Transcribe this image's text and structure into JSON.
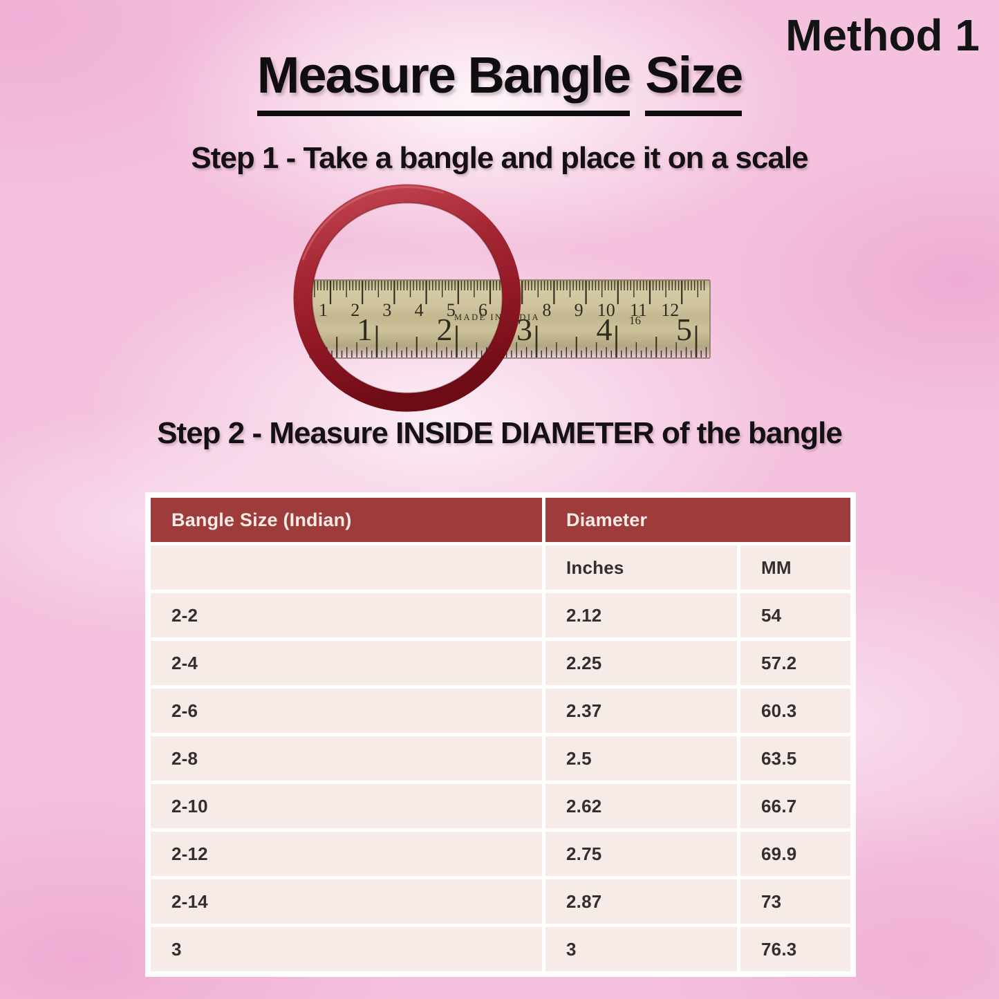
{
  "header": {
    "method_label": "Method 1",
    "title_segments": [
      "Measure Bangle",
      "Size"
    ]
  },
  "steps": {
    "step1": "Step 1 - Take a bangle and place it on a scale",
    "step2": "Step 2 - Measure INSIDE DIAMETER of the bangle"
  },
  "figure": {
    "description": "dark red bangle lying on a steel ruler",
    "ruler": {
      "cm_labels": [
        "1",
        "2",
        "3",
        "4",
        "5",
        "6",
        "7",
        "8",
        "9",
        "10",
        "11",
        "12"
      ],
      "inch_labels": [
        "1",
        "2",
        "3",
        "4",
        "5"
      ],
      "made_in_label": "MADE IN INDIA",
      "sixteenth_label": "16"
    },
    "bangle_color": "#9c2330",
    "ruler_metal_color": "#c9be97"
  },
  "size_chart": {
    "col_group1": "Bangle Size (Indian)",
    "col_group2": "Diameter",
    "subcolumns": [
      "Inches",
      "MM"
    ],
    "rows": [
      {
        "size": "2-2",
        "inches": "2.12",
        "mm": "54"
      },
      {
        "size": "2-4",
        "inches": "2.25",
        "mm": "57.2"
      },
      {
        "size": "2-6",
        "inches": "2.37",
        "mm": "60.3"
      },
      {
        "size": "2-8",
        "inches": "2.5",
        "mm": "63.5"
      },
      {
        "size": "2-10",
        "inches": "2.62",
        "mm": "66.7"
      },
      {
        "size": "2-12",
        "inches": "2.75",
        "mm": "69.9"
      },
      {
        "size": "2-14",
        "inches": "2.87",
        "mm": "73"
      },
      {
        "size": "3",
        "inches": "3",
        "mm": "76.3"
      }
    ],
    "colors": {
      "header_bg": "#9e3c3c",
      "header_text": "#f9ece7",
      "row_bg": "#f6ebe7",
      "cell_text": "#342e30"
    }
  },
  "background_colors": {
    "base_pink": "#f4c2de",
    "deep_pink": "#eda9d3",
    "cloud_white": "#fdf4fa"
  }
}
